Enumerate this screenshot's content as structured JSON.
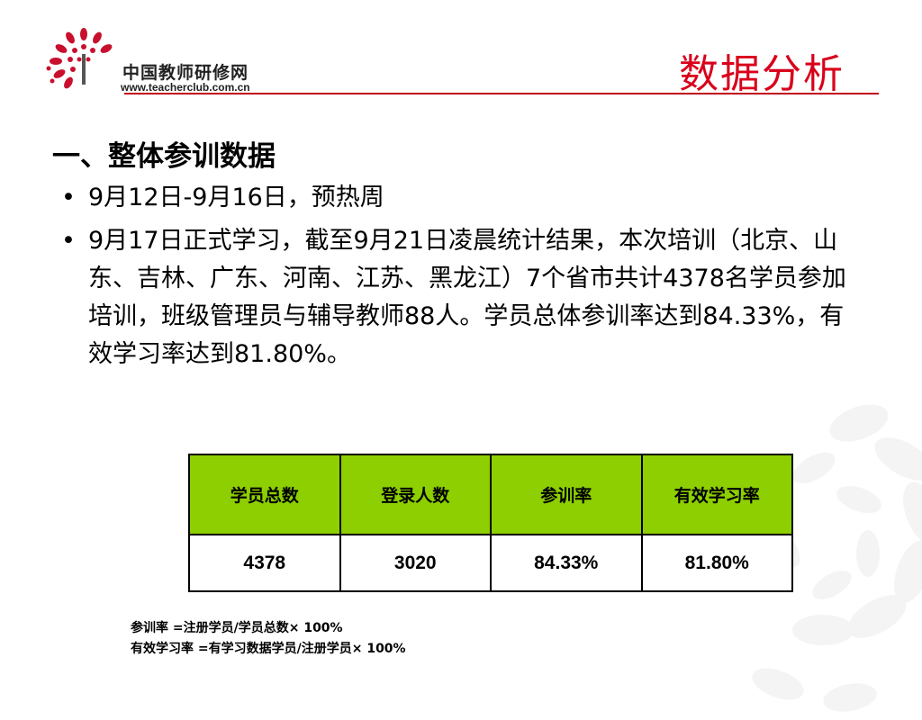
{
  "header": {
    "logo_cn": "中国教师研修网",
    "logo_url": "www.teacherclub.com.cn",
    "title": "数据分析"
  },
  "section": {
    "heading": "一、整体参训数据",
    "bullets": [
      "9月12日-9月16日，预热周",
      "9月17日正式学习，截至9月21日凌晨统计结果，本次培训（北京、山东、吉林、广东、河南、江苏、黑龙江）7个省市共计4378名学员参加培训，班级管理员与辅导教师88人。学员总体参训率达到84.33%，有效学习率达到81.80%。"
    ]
  },
  "table": {
    "headers": [
      "学员总数",
      "登录人数",
      "参训率",
      "有效学习率"
    ],
    "row": [
      "4378",
      "3020",
      "84.33%",
      "81.80%"
    ]
  },
  "notes": [
    "参训率 =注册学员/学员总数× 100%",
    "有效学习率 =有学习数据学员/注册学员× 100%"
  ],
  "colors": {
    "title_red": "#d9001b",
    "header_green": "#8dcf00",
    "logo_red": "#c8102e"
  }
}
